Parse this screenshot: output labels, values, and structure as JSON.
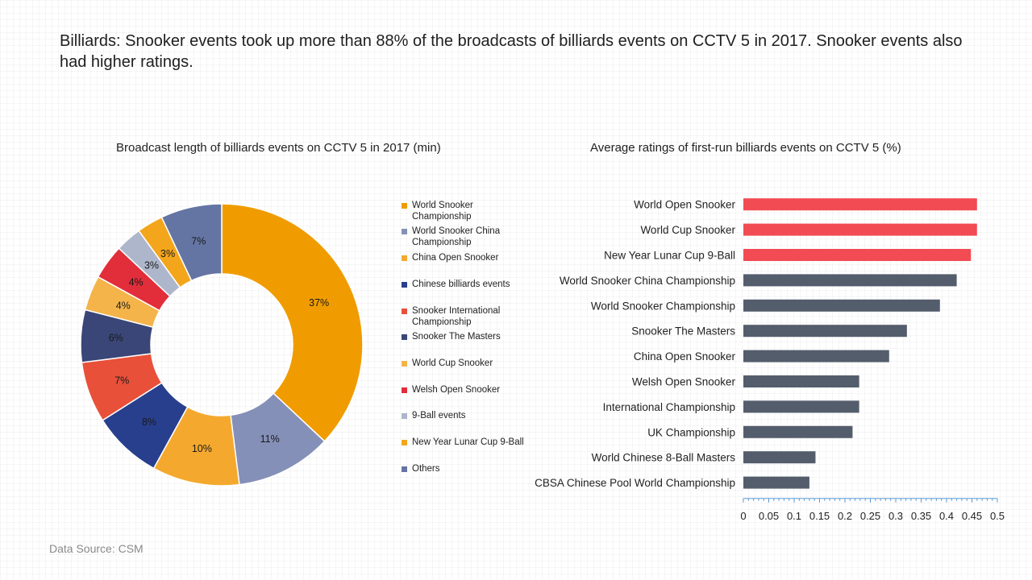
{
  "headline": "Billiards: Snooker events took up more than 88% of the broadcasts of billiards events on CCTV 5 in 2017. Snooker events also had higher ratings.",
  "source": "Data Source: CSM",
  "colors": {
    "highlight": "#f24b53",
    "neutral": "#545d6c",
    "axis": "#5b9bd5"
  },
  "chart_data": [
    {
      "type": "pie",
      "title": "Broadcast length of billiards events on CCTV 5 in 2017 (min)",
      "hole": true,
      "legend_position": "right",
      "slices": [
        {
          "label": "World Snooker Championship",
          "value": 37,
          "display": "37%",
          "color": "#f09c00"
        },
        {
          "label": "World Snooker China Championship",
          "value": 11,
          "display": "11%",
          "color": "#8590b8"
        },
        {
          "label": "China Open Snooker",
          "value": 10,
          "display": "10%",
          "color": "#f4a92e"
        },
        {
          "label": "Chinese billiards events",
          "value": 8,
          "display": "8%",
          "color": "#283f8d"
        },
        {
          "label": "Snooker International Championship",
          "value": 7,
          "display": "7%",
          "color": "#e8503a"
        },
        {
          "label": "Snooker The Masters",
          "value": 6,
          "display": "6%",
          "color": "#3a4677"
        },
        {
          "label": "World Cup Snooker",
          "value": 4,
          "display": "4%",
          "color": "#f4b44a"
        },
        {
          "label": "Welsh Open Snooker",
          "value": 4,
          "display": "4%",
          "color": "#e22d3a"
        },
        {
          "label": "9-Ball events",
          "value": 3,
          "display": "3%",
          "color": "#aeb6cc"
        },
        {
          "label": "New Year Lunar Cup 9-Ball",
          "value": 3,
          "display": "3%",
          "color": "#f3a61c"
        },
        {
          "label": "Others",
          "value": 7,
          "display": "7%",
          "color": "#6475a4"
        }
      ]
    },
    {
      "type": "bar",
      "orientation": "horizontal",
      "title": "Average ratings of first-run billiards events on CCTV 5 (%)",
      "categories": [
        "World Open Snooker",
        "World Cup Snooker",
        "New Year Lunar Cup 9-Ball",
        "World Snooker China Championship",
        "World Snooker Championship",
        "Snooker The Masters",
        "China Open Snooker",
        "Welsh Open Snooker",
        "International Championship",
        "UK Championship",
        "World Chinese 8-Ball Masters",
        "CBSA Chinese Pool World Championship"
      ],
      "values": [
        0.46,
        0.46,
        0.448,
        0.42,
        0.387,
        0.322,
        0.287,
        0.228,
        0.228,
        0.215,
        0.142,
        0.13
      ],
      "highlight": [
        true,
        true,
        true,
        false,
        false,
        false,
        false,
        false,
        false,
        false,
        false,
        false
      ],
      "xlim": [
        0,
        0.5
      ],
      "ticks": [
        "0",
        "0.05",
        "0.1",
        "0.15",
        "0.2",
        "0.25",
        "0.3",
        "0.35",
        "0.4",
        "0.45",
        "0.5"
      ],
      "grid": false
    }
  ]
}
